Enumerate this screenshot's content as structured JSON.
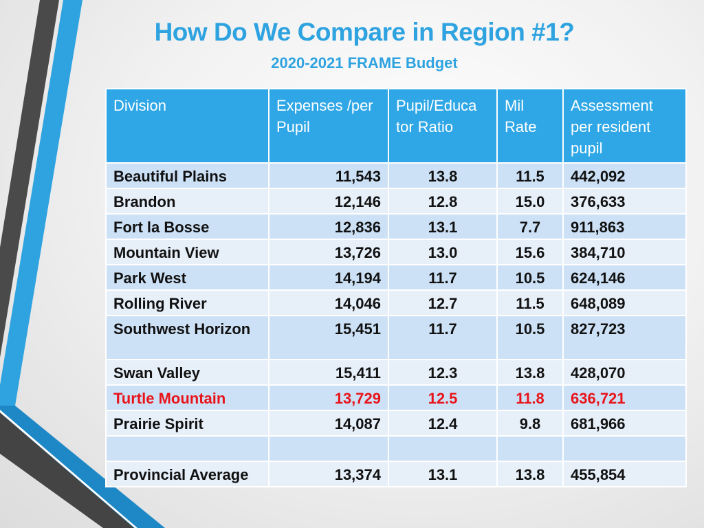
{
  "title": "How Do We Compare in Region #1?",
  "subtitle": "2020-2021 FRAME Budget",
  "colors": {
    "accent": "#2ea3e0",
    "header_bg": "#2fa7e6",
    "highlight": "#e8141b"
  },
  "table": {
    "headers": [
      "Division",
      "Expenses /per Pupil",
      "Pupil/Educa tor Ratio",
      "Mil Rate",
      "Assessment per resident pupil"
    ],
    "rows": [
      {
        "division": "Beautiful Plains",
        "expenses": "11,543",
        "ratio": "13.8",
        "mil": "11.5",
        "assessment": "442,092"
      },
      {
        "division": "Brandon",
        "expenses": "12,146",
        "ratio": "12.8",
        "mil": "15.0",
        "assessment": "376,633"
      },
      {
        "division": "Fort la Bosse",
        "expenses": "12,836",
        "ratio": "13.1",
        "mil": "7.7",
        "assessment": "911,863"
      },
      {
        "division": "Mountain View",
        "expenses": "13,726",
        "ratio": "13.0",
        "mil": "15.6",
        "assessment": "384,710"
      },
      {
        "division": "Park West",
        "expenses": "14,194",
        "ratio": "11.7",
        "mil": "10.5",
        "assessment": "624,146"
      },
      {
        "division": "Rolling River",
        "expenses": "14,046",
        "ratio": "12.7",
        "mil": "11.5",
        "assessment": "648,089"
      },
      {
        "division": "Southwest Horizon",
        "expenses": "15,451",
        "ratio": "11.7",
        "mil": "10.5",
        "assessment": "827,723"
      },
      {
        "division": "Swan Valley",
        "expenses": "15,411",
        "ratio": "12.3",
        "mil": "13.8",
        "assessment": "428,070"
      },
      {
        "division": "Turtle Mountain",
        "expenses": "13,729",
        "ratio": "12.5",
        "mil": "11.8",
        "assessment": "636,721",
        "highlighted": true
      },
      {
        "division": "Prairie Spirit",
        "expenses": "14,087",
        "ratio": "12.4",
        "mil": "9.8",
        "assessment": "681,966"
      },
      {
        "division": "",
        "expenses": "",
        "ratio": "",
        "mil": "",
        "assessment": ""
      },
      {
        "division": "Provincial Average",
        "expenses": "13,374",
        "ratio": "13.1",
        "mil": "13.8",
        "assessment": "455,854"
      }
    ]
  }
}
